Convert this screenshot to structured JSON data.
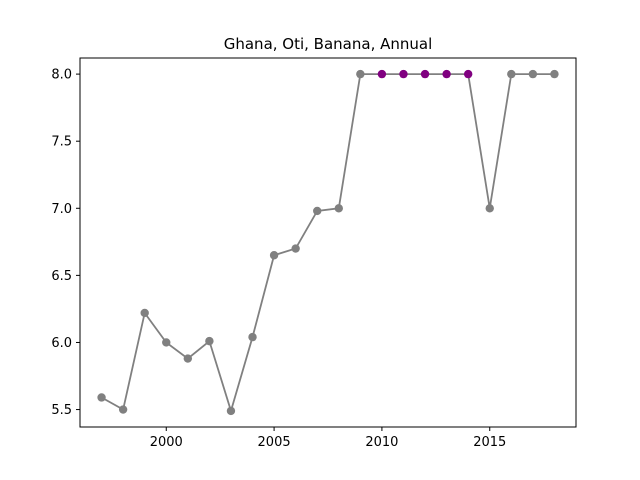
{
  "chart_data": {
    "type": "line",
    "title": "Ghana, Oti, Banana, Annual",
    "xlabel": "",
    "ylabel": "",
    "xlim": [
      1996,
      2019
    ],
    "ylim": [
      5.37,
      8.12
    ],
    "x_ticks": [
      2000,
      2005,
      2010,
      2015
    ],
    "y_ticks": [
      5.5,
      6.0,
      6.5,
      7.0,
      7.5,
      8.0
    ],
    "x_tick_labels": [
      "2000",
      "2005",
      "2010",
      "2015"
    ],
    "y_tick_labels": [
      "5.5",
      "6.0",
      "6.5",
      "7.0",
      "7.5",
      "8.0"
    ],
    "grid": false,
    "line_color": "#808080",
    "marker_color": "#808080",
    "highlight_color": "#800080",
    "series": [
      {
        "x": [
          1997,
          1998,
          1999,
          2000,
          2001,
          2002,
          2003,
          2004,
          2005,
          2006,
          2007,
          2008,
          2009,
          2010,
          2011,
          2012,
          2013,
          2014,
          2015,
          2016,
          2017,
          2018
        ],
        "values": [
          5.59,
          5.5,
          6.22,
          6.0,
          5.88,
          6.01,
          5.49,
          6.04,
          6.65,
          6.7,
          6.98,
          7.0,
          8.0,
          8.0,
          8.0,
          8.0,
          8.0,
          8.0,
          7.0,
          8.0,
          8.0,
          8.0
        ],
        "highlighted": [
          2010,
          2011,
          2012,
          2013,
          2014
        ]
      }
    ]
  }
}
